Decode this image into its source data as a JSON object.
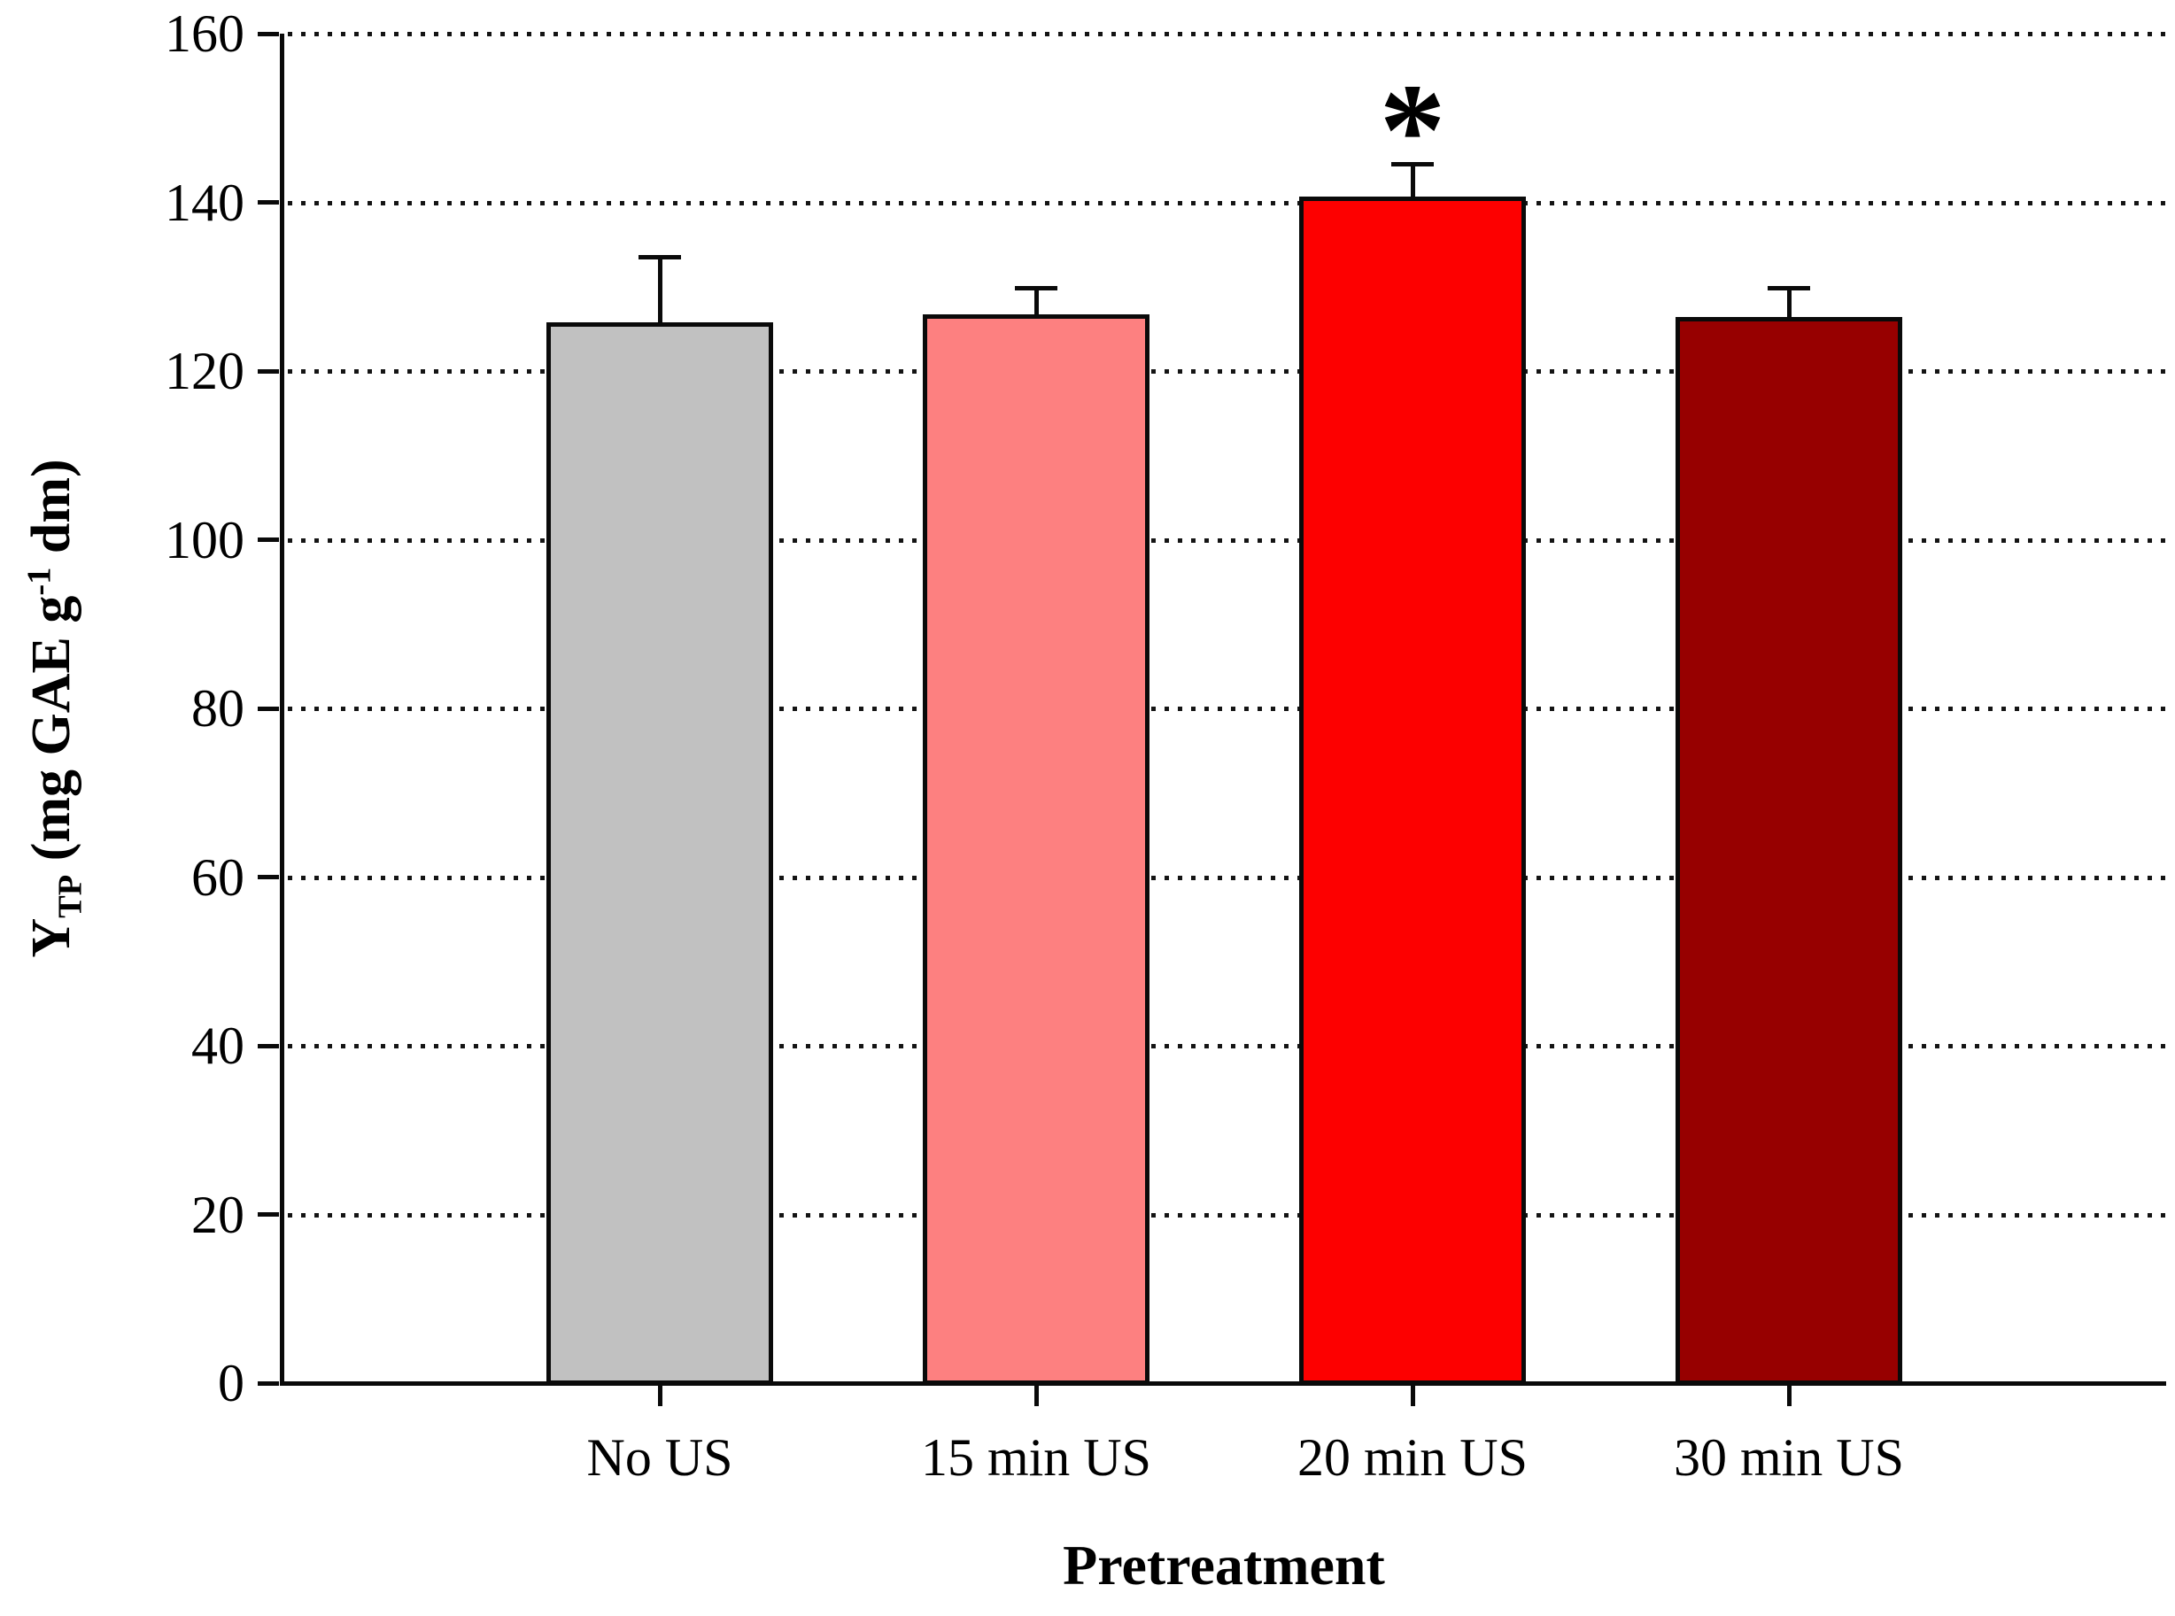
{
  "chart_data": {
    "type": "bar",
    "title": "",
    "xlabel": "Pretreatment",
    "ylabel": "Y_TP (mg GAE g^-1 dm)",
    "ylabel_parts": {
      "symbol": "Y",
      "subscript": "TP",
      "mid": " (mg GAE g",
      "superscript": "-1",
      "end": " dm)"
    },
    "categories": [
      "No US",
      "15 min US",
      "20 min US",
      "30 min US"
    ],
    "values": [
      125.8,
      126.7,
      140.7,
      126.4
    ],
    "errors_plus": [
      7.7,
      3.2,
      3.9,
      3.5
    ],
    "bar_colors": [
      "#c1c1c1",
      "#fd8080",
      "#fd0000",
      "#970000"
    ],
    "bar_border_color": "#0a0a0a",
    "axis_color": "#0a0a0a",
    "ylim": [
      0,
      160
    ],
    "yticks": [
      0,
      20,
      40,
      60,
      80,
      100,
      120,
      140,
      160
    ],
    "grid": "horizontal dotted lines at every y tick",
    "legend": "none",
    "annotations": [
      {
        "symbol": "*",
        "category": "20 min US",
        "bar_index": 2
      }
    ]
  }
}
